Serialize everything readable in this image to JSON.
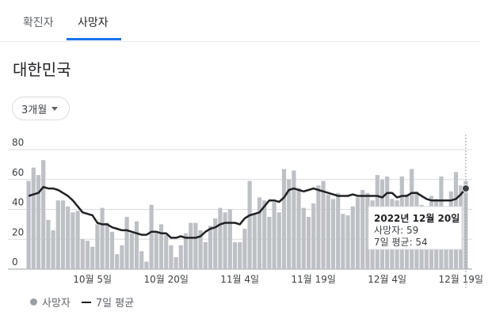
{
  "tabs": [
    {
      "label": "확진자",
      "active": false
    },
    {
      "label": "사망자",
      "active": true
    }
  ],
  "region": "대한민국",
  "range_button": {
    "label": "3개월"
  },
  "legend": {
    "bars": "사망자",
    "line": "7일 평균"
  },
  "tooltip": {
    "date": "2022년 12월 20일",
    "deaths": "사망자: 59",
    "avg": "7일 평균: 54"
  },
  "colors": {
    "bar": "#bdc1c6",
    "line": "#202124",
    "accent": "#1a73e8",
    "grid": "#dadce0"
  },
  "chart_data": {
    "type": "bar",
    "start_date": "2022-09-22",
    "ylim": [
      0,
      80
    ],
    "yticks": [
      0,
      20,
      40,
      60,
      80
    ],
    "xticks": [
      {
        "label": "10월 5일",
        "index": 13
      },
      {
        "label": "10월 20일",
        "index": 28
      },
      {
        "label": "11월 4일",
        "index": 43
      },
      {
        "label": "11월 19일",
        "index": 58
      },
      {
        "label": "12월 4일",
        "index": 73
      },
      {
        "label": "12월 19일",
        "index": 88
      }
    ],
    "series": [
      {
        "name": "사망자",
        "values": [
          59,
          68,
          63,
          73,
          33,
          26,
          46,
          46,
          42,
          38,
          39,
          20,
          19,
          15,
          30,
          41,
          31,
          25,
          10,
          16,
          35,
          24,
          32,
          12,
          5,
          43,
          25,
          30,
          23,
          16,
          8,
          16,
          24,
          31,
          31,
          26,
          18,
          29,
          34,
          41,
          38,
          40,
          18,
          18,
          27,
          59,
          37,
          48,
          46,
          35,
          45,
          38,
          67,
          60,
          66,
          54,
          41,
          35,
          44,
          56,
          59,
          50,
          47,
          51,
          37,
          36,
          42,
          48,
          53,
          51,
          46,
          63,
          60,
          62,
          47,
          46,
          62,
          50,
          67,
          52,
          43,
          39,
          49,
          47,
          62,
          42,
          52,
          65,
          56,
          59
        ]
      },
      {
        "name": "7일 평균",
        "values": [
          49,
          50,
          51,
          55,
          54,
          54,
          53,
          51,
          49,
          46,
          42,
          38,
          37,
          36,
          31,
          30,
          30,
          28,
          27,
          26,
          26,
          25,
          24,
          23,
          23,
          25,
          25,
          24,
          24,
          21,
          21,
          22,
          21,
          21,
          21,
          22,
          25,
          27,
          28,
          30,
          31,
          31,
          31,
          30,
          34,
          36,
          37,
          38,
          42,
          46,
          46,
          45,
          48,
          53,
          54,
          53,
          52,
          53,
          54,
          53,
          52,
          51,
          50,
          49,
          49,
          49,
          50,
          49,
          49,
          49,
          49,
          49,
          48,
          51,
          51,
          48,
          49,
          49,
          51,
          51,
          49,
          47,
          46,
          46,
          46,
          46,
          46,
          47,
          50,
          54
        ]
      }
    ],
    "highlight_index": 89
  }
}
